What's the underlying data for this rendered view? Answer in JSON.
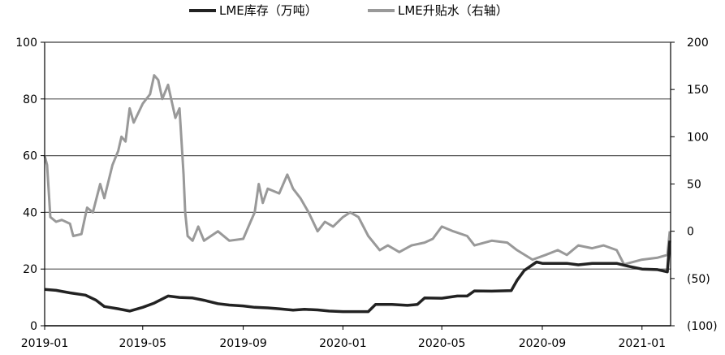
{
  "chart_data": {
    "type": "line",
    "title": "",
    "xlabel": "",
    "ylabel": "",
    "x_ticks": [
      "2019-01",
      "2019-05",
      "2019-09",
      "2020-01",
      "2020-05",
      "2020-09",
      "2021-01"
    ],
    "y_left": {
      "min": 0,
      "max": 100,
      "ticks": [
        "0",
        "20",
        "40",
        "60",
        "80",
        "100"
      ]
    },
    "y_right": {
      "min": -100,
      "max": 200,
      "ticks": [
        "(100)",
        "(50)",
        "0",
        "50",
        "100",
        "150",
        "200"
      ]
    },
    "grid": true,
    "legend": {
      "placement": "top-center"
    },
    "series": [
      {
        "name": "LME库存（万吨）",
        "axis": "left",
        "color": "#222222",
        "points": [
          [
            "2019-01-01",
            12.8
          ],
          [
            "2019-01-15",
            12.5
          ],
          [
            "2019-02-01",
            11.6
          ],
          [
            "2019-02-20",
            10.8
          ],
          [
            "2019-03-05",
            9.0
          ],
          [
            "2019-03-15",
            6.8
          ],
          [
            "2019-04-01",
            6.0
          ],
          [
            "2019-04-15",
            5.2
          ],
          [
            "2019-05-01",
            6.5
          ],
          [
            "2019-05-15",
            8.0
          ],
          [
            "2019-06-01",
            10.5
          ],
          [
            "2019-06-15",
            10.0
          ],
          [
            "2019-07-01",
            9.8
          ],
          [
            "2019-07-15",
            9.0
          ],
          [
            "2019-08-01",
            7.8
          ],
          [
            "2019-08-15",
            7.3
          ],
          [
            "2019-09-01",
            7.0
          ],
          [
            "2019-09-15",
            6.5
          ],
          [
            "2019-10-01",
            6.3
          ],
          [
            "2019-10-15",
            6.0
          ],
          [
            "2019-11-01",
            5.5
          ],
          [
            "2019-11-15",
            5.8
          ],
          [
            "2019-12-01",
            5.6
          ],
          [
            "2019-12-15",
            5.2
          ],
          [
            "2020-01-01",
            5.0
          ],
          [
            "2020-01-15",
            5.0
          ],
          [
            "2020-02-01",
            5.0
          ],
          [
            "2020-02-10",
            7.5
          ],
          [
            "2020-03-01",
            7.5
          ],
          [
            "2020-03-20",
            7.2
          ],
          [
            "2020-04-01",
            7.5
          ],
          [
            "2020-04-10",
            9.8
          ],
          [
            "2020-05-01",
            9.7
          ],
          [
            "2020-05-20",
            10.5
          ],
          [
            "2020-06-01",
            10.5
          ],
          [
            "2020-06-10",
            12.3
          ],
          [
            "2020-07-01",
            12.2
          ],
          [
            "2020-07-25",
            12.4
          ],
          [
            "2020-08-01",
            16.0
          ],
          [
            "2020-08-10",
            19.5
          ],
          [
            "2020-08-25",
            22.5
          ],
          [
            "2020-09-01",
            22.0
          ],
          [
            "2020-10-01",
            22.0
          ],
          [
            "2020-10-15",
            21.5
          ],
          [
            "2020-11-01",
            22.0
          ],
          [
            "2020-12-01",
            22.0
          ],
          [
            "2020-12-15",
            21.0
          ],
          [
            "2021-01-01",
            20.0
          ],
          [
            "2021-01-20",
            19.8
          ],
          [
            "2021-02-01",
            19.0
          ],
          [
            "2021-02-04",
            30.0
          ]
        ]
      },
      {
        "name": "LME升贴水（右轴）",
        "axis": "right",
        "color": "#999999",
        "points": [
          [
            "2019-01-01",
            80
          ],
          [
            "2019-01-04",
            70
          ],
          [
            "2019-01-08",
            15
          ],
          [
            "2019-01-15",
            10
          ],
          [
            "2019-01-22",
            12
          ],
          [
            "2019-02-01",
            8
          ],
          [
            "2019-02-05",
            -5
          ],
          [
            "2019-02-15",
            -3
          ],
          [
            "2019-02-22",
            25
          ],
          [
            "2019-03-01",
            20
          ],
          [
            "2019-03-10",
            50
          ],
          [
            "2019-03-15",
            35
          ],
          [
            "2019-03-25",
            70
          ],
          [
            "2019-04-01",
            85
          ],
          [
            "2019-04-05",
            100
          ],
          [
            "2019-04-10",
            95
          ],
          [
            "2019-04-15",
            130
          ],
          [
            "2019-04-20",
            115
          ],
          [
            "2019-05-01",
            135
          ],
          [
            "2019-05-10",
            145
          ],
          [
            "2019-05-15",
            165
          ],
          [
            "2019-05-20",
            160
          ],
          [
            "2019-05-25",
            140
          ],
          [
            "2019-06-01",
            155
          ],
          [
            "2019-06-10",
            120
          ],
          [
            "2019-06-15",
            130
          ],
          [
            "2019-06-20",
            60
          ],
          [
            "2019-06-22",
            20
          ],
          [
            "2019-06-25",
            -5
          ],
          [
            "2019-07-01",
            -10
          ],
          [
            "2019-07-08",
            5
          ],
          [
            "2019-07-15",
            -10
          ],
          [
            "2019-08-01",
            0
          ],
          [
            "2019-08-15",
            -10
          ],
          [
            "2019-09-01",
            -8
          ],
          [
            "2019-09-10",
            10
          ],
          [
            "2019-09-15",
            20
          ],
          [
            "2019-09-20",
            50
          ],
          [
            "2019-09-25",
            30
          ],
          [
            "2019-10-01",
            45
          ],
          [
            "2019-10-15",
            40
          ],
          [
            "2019-10-25",
            60
          ],
          [
            "2019-11-01",
            45
          ],
          [
            "2019-11-10",
            35
          ],
          [
            "2019-11-20",
            20
          ],
          [
            "2019-12-01",
            0
          ],
          [
            "2019-12-10",
            10
          ],
          [
            "2019-12-20",
            5
          ],
          [
            "2020-01-01",
            15
          ],
          [
            "2020-01-10",
            20
          ],
          [
            "2020-01-20",
            15
          ],
          [
            "2020-02-01",
            -5
          ],
          [
            "2020-02-15",
            -20
          ],
          [
            "2020-02-25",
            -15
          ],
          [
            "2020-03-10",
            -22
          ],
          [
            "2020-03-25",
            -15
          ],
          [
            "2020-04-10",
            -12
          ],
          [
            "2020-04-20",
            -8
          ],
          [
            "2020-05-01",
            5
          ],
          [
            "2020-05-15",
            0
          ],
          [
            "2020-06-01",
            -5
          ],
          [
            "2020-06-10",
            -15
          ],
          [
            "2020-07-01",
            -10
          ],
          [
            "2020-07-20",
            -12
          ],
          [
            "2020-08-01",
            -20
          ],
          [
            "2020-08-20",
            -30
          ],
          [
            "2020-09-05",
            -25
          ],
          [
            "2020-09-20",
            -20
          ],
          [
            "2020-10-01",
            -25
          ],
          [
            "2020-10-15",
            -15
          ],
          [
            "2020-11-01",
            -18
          ],
          [
            "2020-11-15",
            -15
          ],
          [
            "2020-12-01",
            -20
          ],
          [
            "2020-12-10",
            -35
          ],
          [
            "2021-01-01",
            -30
          ],
          [
            "2021-01-20",
            -28
          ],
          [
            "2021-02-01",
            -25
          ],
          [
            "2021-02-04",
            0
          ]
        ]
      }
    ]
  }
}
